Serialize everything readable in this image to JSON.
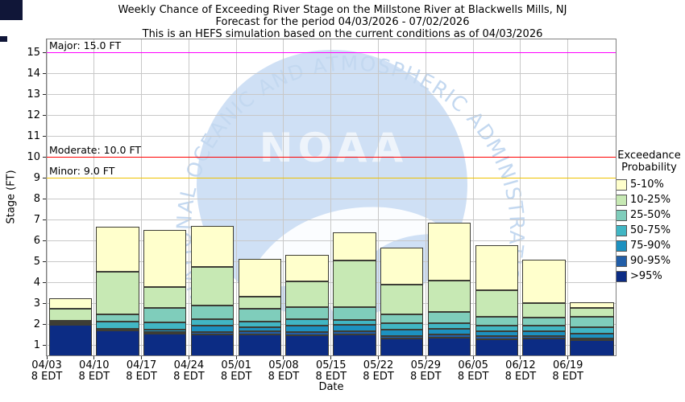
{
  "title": {
    "line1": "Weekly Chance of Exceeding River Stage on the Millstone River at Blackwells Mills, NJ",
    "line2": "Forecast for the period 04/03/2026 - 07/02/2026",
    "line3": "This is an HEFS simulation based on the current conditions as of 04/03/2026"
  },
  "y_axis": {
    "label": "Stage (FT)",
    "min": 0.5,
    "max": 15.69,
    "ticks": [
      1,
      2,
      3,
      4,
      5,
      6,
      7,
      8,
      9,
      10,
      11,
      12,
      13,
      14,
      15
    ]
  },
  "x_axis": {
    "label": "Date",
    "time_label": "8 EDT"
  },
  "thresholds": [
    {
      "name": "Major",
      "label": "Major: 15.0 FT",
      "value": 15.0,
      "color": "#ff00ff"
    },
    {
      "name": "Moderate",
      "label": "Moderate: 10.0 FT",
      "value": 10.0,
      "color": "#ff0000"
    },
    {
      "name": "Minor",
      "label": "Minor: 9.0 FT",
      "value": 9.0,
      "color": "#eec100"
    }
  ],
  "legend": {
    "title_line1": "Exceedance",
    "title_line2": "Probability",
    "items": [
      {
        "label": "5-10%",
        "color": "#ffffcc"
      },
      {
        "label": "10-25%",
        "color": "#c7e9b4"
      },
      {
        "label": "25-50%",
        "color": "#7fcdbb"
      },
      {
        "label": "50-75%",
        "color": "#41b6c4"
      },
      {
        "label": "75-90%",
        "color": "#1d91c0"
      },
      {
        "label": "90-95%",
        "color": "#225ea8"
      },
      {
        "label": ">95%",
        "color": "#0c2c84"
      }
    ]
  },
  "watermark": {
    "arc_text": "NATIONAL OCEANIC AND ATMOSPHERIC ADMINISTRATION",
    "center_text": "NOAA"
  },
  "chart_data": {
    "type": "bar",
    "stacked": true,
    "title": "Weekly Chance of Exceeding River Stage on the Millstone River at Blackwells Mills, NJ",
    "xlabel": "Date",
    "ylabel": "Stage (FT)",
    "ylim": [
      0.5,
      15.69
    ],
    "grid": true,
    "legend_position": "right",
    "baseline_ft": 0.5,
    "categories": [
      "04/03",
      "04/10",
      "04/17",
      "04/24",
      "05/01",
      "05/08",
      "05/15",
      "05/22",
      "05/29",
      "06/05",
      "06/12",
      "06/19"
    ],
    "category_sublabel": "8 EDT",
    "note": "Each series value is the stage (FT) at the upper boundary of that probability band; bands stack upward from the plot baseline of 0.5 FT. Bar top = 5% exceedance stage.",
    "series": [
      {
        "name": ">95%",
        "color": "#0c2c84",
        "upper_boundary_ft": [
          2.0,
          1.73,
          1.57,
          1.55,
          1.54,
          1.51,
          1.55,
          1.35,
          1.4,
          1.32,
          1.35,
          1.25
        ]
      },
      {
        "name": "90-95%",
        "color": "#225ea8",
        "upper_boundary_ft": [
          2.04,
          1.77,
          1.65,
          1.64,
          1.71,
          1.64,
          1.68,
          1.47,
          1.55,
          1.45,
          1.47,
          1.35
        ]
      },
      {
        "name": "75-90%",
        "color": "#1d91c0",
        "upper_boundary_ft": [
          2.08,
          1.81,
          1.75,
          1.96,
          1.9,
          1.95,
          2.0,
          1.77,
          1.81,
          1.68,
          1.71,
          1.58
        ]
      },
      {
        "name": "50-75%",
        "color": "#41b6c4",
        "upper_boundary_ft": [
          2.12,
          2.17,
          2.13,
          2.26,
          2.15,
          2.25,
          2.24,
          2.08,
          2.06,
          1.96,
          1.96,
          1.9
        ]
      },
      {
        "name": "25-50%",
        "color": "#7fcdbb",
        "upper_boundary_ft": [
          2.18,
          2.5,
          2.8,
          2.92,
          2.75,
          2.85,
          2.85,
          2.5,
          2.6,
          2.38,
          2.35,
          2.37
        ]
      },
      {
        "name": "10-25%",
        "color": "#c7e9b4",
        "upper_boundary_ft": [
          2.78,
          4.55,
          3.82,
          4.77,
          3.33,
          4.08,
          5.08,
          3.92,
          4.1,
          3.65,
          3.03,
          2.81
        ]
      },
      {
        "name": "5-10%",
        "color": "#ffffcc",
        "upper_boundary_ft": [
          3.28,
          6.7,
          6.52,
          6.73,
          5.17,
          5.36,
          6.42,
          5.7,
          6.88,
          5.82,
          5.12,
          3.08
        ]
      }
    ]
  }
}
